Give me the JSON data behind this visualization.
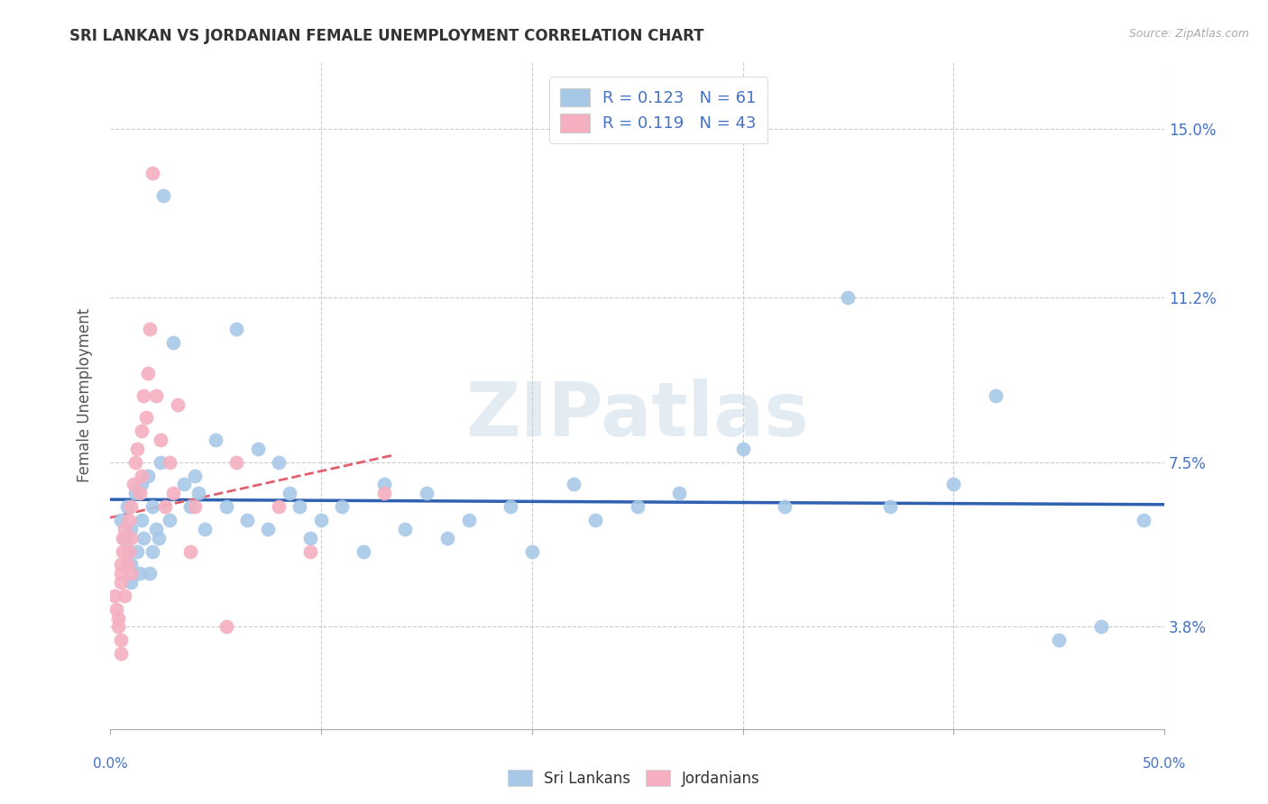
{
  "title": "SRI LANKAN VS JORDANIAN FEMALE UNEMPLOYMENT CORRELATION CHART",
  "source": "Source: ZipAtlas.com",
  "ylabel": "Female Unemployment",
  "yticks": [
    3.8,
    7.5,
    11.2,
    15.0
  ],
  "ytick_labels": [
    "3.8%",
    "7.5%",
    "11.2%",
    "15.0%"
  ],
  "xmin": 0.0,
  "xmax": 0.5,
  "ymin": 1.5,
  "ymax": 16.5,
  "sri_lankan_color": "#a8c8e8",
  "jordanian_color": "#f4b0c0",
  "sri_lankan_line_color": "#3060b0",
  "jordanian_line_color": "#e06070",
  "legend_text_color": "#4472c4",
  "sri_lankan_R": "0.123",
  "sri_lankan_N": "61",
  "jordanian_R": "0.119",
  "jordanian_N": "43",
  "background_color": "#ffffff",
  "grid_color": "#cccccc",
  "watermark": "ZIPatlas",
  "sri_lankans_x": [
    0.005,
    0.007,
    0.008,
    0.009,
    0.01,
    0.01,
    0.01,
    0.012,
    0.013,
    0.014,
    0.015,
    0.015,
    0.016,
    0.018,
    0.019,
    0.02,
    0.02,
    0.022,
    0.023,
    0.024,
    0.025,
    0.028,
    0.03,
    0.035,
    0.038,
    0.04,
    0.042,
    0.045,
    0.05,
    0.055,
    0.06,
    0.065,
    0.07,
    0.075,
    0.08,
    0.085,
    0.09,
    0.095,
    0.1,
    0.11,
    0.12,
    0.13,
    0.14,
    0.15,
    0.16,
    0.17,
    0.19,
    0.2,
    0.22,
    0.23,
    0.25,
    0.27,
    0.3,
    0.32,
    0.35,
    0.37,
    0.4,
    0.42,
    0.45,
    0.47,
    0.49
  ],
  "sri_lankans_y": [
    6.2,
    5.8,
    6.5,
    5.5,
    6.0,
    5.2,
    4.8,
    6.8,
    5.5,
    5.0,
    7.0,
    6.2,
    5.8,
    7.2,
    5.0,
    6.5,
    5.5,
    6.0,
    5.8,
    7.5,
    13.5,
    6.2,
    10.2,
    7.0,
    6.5,
    7.2,
    6.8,
    6.0,
    8.0,
    6.5,
    10.5,
    6.2,
    7.8,
    6.0,
    7.5,
    6.8,
    6.5,
    5.8,
    6.2,
    6.5,
    5.5,
    7.0,
    6.0,
    6.8,
    5.8,
    6.2,
    6.5,
    5.5,
    7.0,
    6.2,
    6.5,
    6.8,
    7.8,
    6.5,
    11.2,
    6.5,
    7.0,
    9.0,
    3.5,
    3.8,
    6.2
  ],
  "jordanians_x": [
    0.002,
    0.003,
    0.004,
    0.004,
    0.005,
    0.005,
    0.005,
    0.005,
    0.005,
    0.006,
    0.006,
    0.007,
    0.007,
    0.008,
    0.009,
    0.009,
    0.01,
    0.01,
    0.01,
    0.011,
    0.012,
    0.013,
    0.014,
    0.015,
    0.015,
    0.016,
    0.017,
    0.018,
    0.019,
    0.02,
    0.022,
    0.024,
    0.026,
    0.028,
    0.03,
    0.032,
    0.038,
    0.04,
    0.055,
    0.06,
    0.08,
    0.095,
    0.13
  ],
  "jordanians_y": [
    4.5,
    4.2,
    4.0,
    3.8,
    3.5,
    3.2,
    4.8,
    5.0,
    5.2,
    5.5,
    5.8,
    6.0,
    4.5,
    5.2,
    6.2,
    5.5,
    6.5,
    5.8,
    5.0,
    7.0,
    7.5,
    7.8,
    6.8,
    8.2,
    7.2,
    9.0,
    8.5,
    9.5,
    10.5,
    14.0,
    9.0,
    8.0,
    6.5,
    7.5,
    6.8,
    8.8,
    5.5,
    6.5,
    3.8,
    7.5,
    6.5,
    5.5,
    6.8
  ]
}
